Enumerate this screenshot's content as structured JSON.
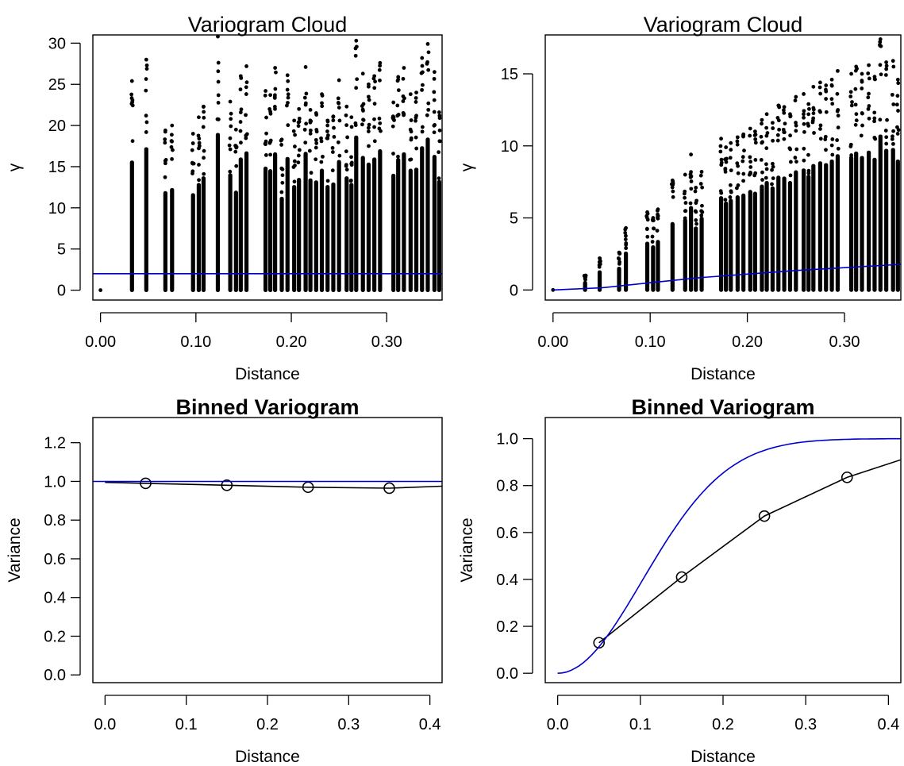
{
  "chart_data": [
    {
      "type": "scatter",
      "title": "Variogram Cloud",
      "xlabel": "Distance",
      "ylabel": "γ",
      "xlim": [
        -0.008,
        0.358
      ],
      "ylim": [
        -1.2,
        31.0
      ],
      "xticks": [
        0.0,
        0.1,
        0.2,
        0.3
      ],
      "xtick_labels": [
        "0.00",
        "0.10",
        "0.20",
        "0.30"
      ],
      "yticks": [
        0,
        5,
        10,
        15,
        20,
        25,
        30
      ],
      "ytick_labels": [
        "0",
        "5",
        "10",
        "15",
        "20",
        "25",
        "30"
      ],
      "grid": false,
      "point_color": "#000000",
      "line_color": "#0000cc",
      "model_line": {
        "name": "",
        "shape": "flat",
        "value": 2.0
      },
      "cloud_columns": [
        {
          "x": 0.0,
          "max": 0.1
        },
        {
          "x": 0.033,
          "max": 25.4
        },
        {
          "x": 0.048,
          "max": 28.0
        },
        {
          "x": 0.068,
          "max": 19.4
        },
        {
          "x": 0.075,
          "max": 20.0
        },
        {
          "x": 0.097,
          "max": 19.0
        },
        {
          "x": 0.103,
          "max": 21.0
        },
        {
          "x": 0.108,
          "max": 22.3
        },
        {
          "x": 0.123,
          "max": 30.8
        },
        {
          "x": 0.136,
          "max": 22.9
        },
        {
          "x": 0.142,
          "max": 19.5
        },
        {
          "x": 0.147,
          "max": 26.0
        },
        {
          "x": 0.153,
          "max": 27.2
        },
        {
          "x": 0.173,
          "max": 24.2
        },
        {
          "x": 0.178,
          "max": 23.7
        },
        {
          "x": 0.183,
          "max": 27.0
        },
        {
          "x": 0.19,
          "max": 18.3
        },
        {
          "x": 0.196,
          "max": 26.1
        },
        {
          "x": 0.203,
          "max": 20.6
        },
        {
          "x": 0.208,
          "max": 22.0
        },
        {
          "x": 0.215,
          "max": 27.1
        },
        {
          "x": 0.22,
          "max": 21.9
        },
        {
          "x": 0.226,
          "max": 21.5
        },
        {
          "x": 0.232,
          "max": 23.8
        },
        {
          "x": 0.238,
          "max": 20.6
        },
        {
          "x": 0.244,
          "max": 21.1
        },
        {
          "x": 0.25,
          "max": 25.5
        },
        {
          "x": 0.258,
          "max": 22.3
        },
        {
          "x": 0.263,
          "max": 21.0
        },
        {
          "x": 0.268,
          "max": 30.3
        },
        {
          "x": 0.275,
          "max": 26.3
        },
        {
          "x": 0.281,
          "max": 25.0
        },
        {
          "x": 0.287,
          "max": 26.0
        },
        {
          "x": 0.293,
          "max": 27.6
        },
        {
          "x": 0.307,
          "max": 22.8
        },
        {
          "x": 0.312,
          "max": 25.9
        },
        {
          "x": 0.318,
          "max": 27.0
        },
        {
          "x": 0.325,
          "max": 23.8
        },
        {
          "x": 0.331,
          "max": 24.0
        },
        {
          "x": 0.337,
          "max": 28.2
        },
        {
          "x": 0.343,
          "max": 29.9
        },
        {
          "x": 0.35,
          "max": 26.5
        },
        {
          "x": 0.355,
          "max": 21.6
        }
      ]
    },
    {
      "type": "scatter",
      "title": "Variogram Cloud",
      "xlabel": "Distance",
      "ylabel": "γ",
      "xlim": [
        -0.008,
        0.358
      ],
      "ylim": [
        -0.7,
        17.7
      ],
      "xticks": [
        0.0,
        0.1,
        0.2,
        0.3
      ],
      "xtick_labels": [
        "0.00",
        "0.10",
        "0.20",
        "0.30"
      ],
      "yticks": [
        0,
        5,
        10,
        15
      ],
      "ytick_labels": [
        "0",
        "5",
        "10",
        "15"
      ],
      "grid": false,
      "point_color": "#000000",
      "line_color": "#0000cc",
      "model_line": {
        "name": "",
        "shape": "rising",
        "points": [
          [
            0.0,
            0.0
          ],
          [
            0.05,
            0.15
          ],
          [
            0.1,
            0.5
          ],
          [
            0.15,
            0.85
          ],
          [
            0.2,
            1.1
          ],
          [
            0.25,
            1.35
          ],
          [
            0.3,
            1.55
          ],
          [
            0.358,
            1.78
          ]
        ]
      },
      "cloud_columns": [
        {
          "x": 0.0,
          "max": 0.05
        },
        {
          "x": 0.033,
          "max": 1.0
        },
        {
          "x": 0.048,
          "max": 2.2
        },
        {
          "x": 0.068,
          "max": 2.6
        },
        {
          "x": 0.075,
          "max": 4.3
        },
        {
          "x": 0.097,
          "max": 5.4
        },
        {
          "x": 0.103,
          "max": 5.0
        },
        {
          "x": 0.108,
          "max": 5.6
        },
        {
          "x": 0.123,
          "max": 7.6
        },
        {
          "x": 0.136,
          "max": 8.0
        },
        {
          "x": 0.142,
          "max": 9.4
        },
        {
          "x": 0.147,
          "max": 7.1
        },
        {
          "x": 0.153,
          "max": 8.2
        },
        {
          "x": 0.173,
          "max": 10.5
        },
        {
          "x": 0.178,
          "max": 9.9
        },
        {
          "x": 0.183,
          "max": 10.2
        },
        {
          "x": 0.19,
          "max": 10.6
        },
        {
          "x": 0.196,
          "max": 10.8
        },
        {
          "x": 0.203,
          "max": 11.2
        },
        {
          "x": 0.208,
          "max": 11.0
        },
        {
          "x": 0.215,
          "max": 11.8
        },
        {
          "x": 0.22,
          "max": 12.2
        },
        {
          "x": 0.226,
          "max": 11.6
        },
        {
          "x": 0.232,
          "max": 12.8
        },
        {
          "x": 0.238,
          "max": 12.7
        },
        {
          "x": 0.244,
          "max": 12.2
        },
        {
          "x": 0.25,
          "max": 13.4
        },
        {
          "x": 0.258,
          "max": 13.6
        },
        {
          "x": 0.263,
          "max": 12.9
        },
        {
          "x": 0.268,
          "max": 14.1
        },
        {
          "x": 0.275,
          "max": 14.4
        },
        {
          "x": 0.281,
          "max": 14.2
        },
        {
          "x": 0.287,
          "max": 14.6
        },
        {
          "x": 0.293,
          "max": 15.2
        },
        {
          "x": 0.307,
          "max": 15.0
        },
        {
          "x": 0.312,
          "max": 15.5
        },
        {
          "x": 0.318,
          "max": 15.0
        },
        {
          "x": 0.325,
          "max": 15.6
        },
        {
          "x": 0.331,
          "max": 14.8
        },
        {
          "x": 0.337,
          "max": 17.4
        },
        {
          "x": 0.343,
          "max": 15.8
        },
        {
          "x": 0.35,
          "max": 15.9
        },
        {
          "x": 0.355,
          "max": 14.6
        }
      ]
    },
    {
      "type": "line",
      "title": "Binned Variogram",
      "xlabel": "Distance",
      "ylabel": "Variance",
      "xlim": [
        -0.015,
        0.415
      ],
      "ylim": [
        -0.04,
        1.33
      ],
      "xticks": [
        0.0,
        0.1,
        0.2,
        0.3,
        0.4
      ],
      "xtick_labels": [
        "0.0",
        "0.1",
        "0.2",
        "0.3",
        "0.4"
      ],
      "yticks": [
        0.0,
        0.2,
        0.4,
        0.6,
        0.8,
        1.0,
        1.2
      ],
      "ytick_labels": [
        "0.0",
        "0.2",
        "0.4",
        "0.6",
        "0.8",
        "1.0",
        "1.2"
      ],
      "grid": false,
      "series": [
        {
          "name": "",
          "color": "#000000",
          "markers": "open-circle",
          "x": [
            0.05,
            0.15,
            0.25,
            0.35
          ],
          "y": [
            0.99,
            0.98,
            0.97,
            0.965
          ],
          "line_extend": [
            [
              0.0,
              0.995
            ],
            [
              0.415,
              0.975
            ]
          ]
        },
        {
          "name": "",
          "color": "#0000cc",
          "markers": "none",
          "x": [
            -0.015,
            0.415
          ],
          "y": [
            1.0,
            1.0
          ]
        }
      ]
    },
    {
      "type": "line",
      "title": "Binned Variogram",
      "xlabel": "Distance",
      "ylabel": "Variance",
      "xlim": [
        -0.015,
        0.415
      ],
      "ylim": [
        -0.04,
        1.09
      ],
      "xticks": [
        0.0,
        0.1,
        0.2,
        0.3,
        0.4
      ],
      "xtick_labels": [
        "0.0",
        "0.1",
        "0.2",
        "0.3",
        "0.4"
      ],
      "yticks": [
        0.0,
        0.2,
        0.4,
        0.6,
        0.8,
        1.0
      ],
      "ytick_labels": [
        "0.0",
        "0.2",
        "0.4",
        "0.6",
        "0.8",
        "1.0"
      ],
      "grid": false,
      "series": [
        {
          "name": "",
          "color": "#000000",
          "markers": "open-circle",
          "x": [
            0.05,
            0.15,
            0.25,
            0.35
          ],
          "y": [
            0.13,
            0.41,
            0.67,
            0.835
          ],
          "line_extend": [
            [
              0.415,
              0.91
            ]
          ]
        },
        {
          "name": "",
          "color": "#0000cc",
          "markers": "none",
          "model": "gaussian",
          "sill": 1.0,
          "range": 0.25,
          "x_from": 0.0,
          "x_to": 0.415
        }
      ]
    }
  ]
}
